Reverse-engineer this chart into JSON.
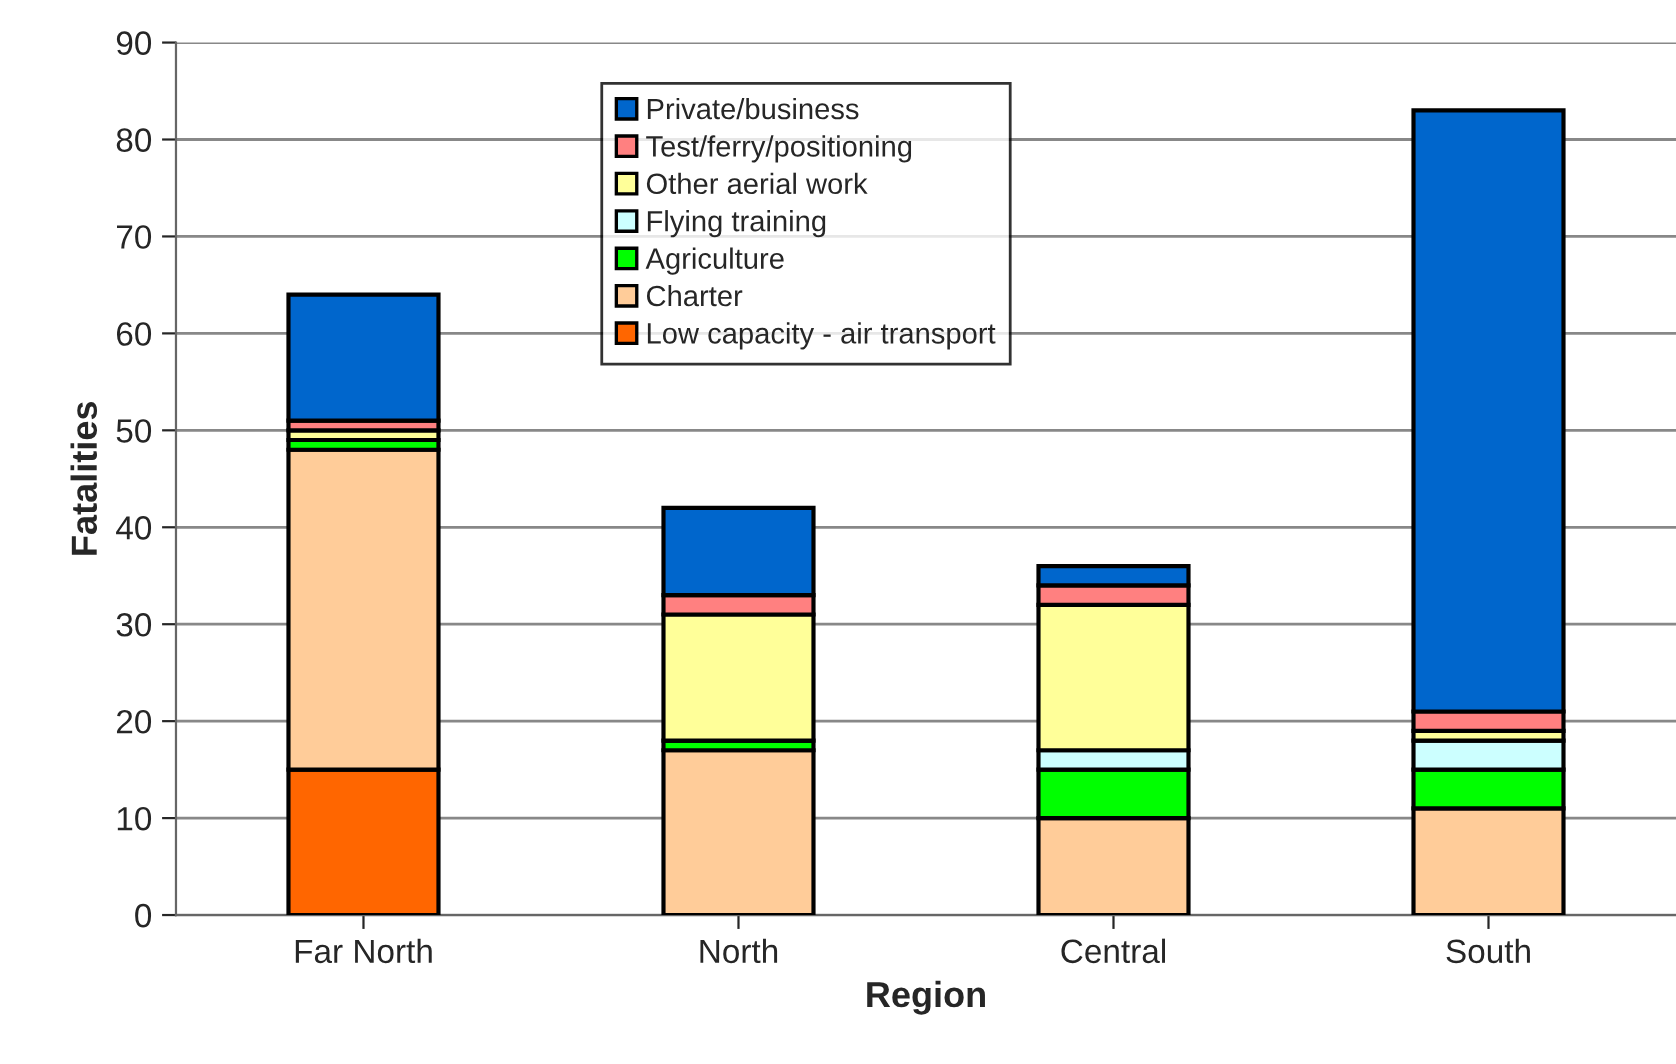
{
  "chart_data": {
    "type": "bar",
    "xlabel": "Region",
    "ylabel": "Fatalities",
    "categories": [
      "Far North",
      "North",
      "Central",
      "South"
    ],
    "stacked": true,
    "series": [
      {
        "name": "Low capacity - air transport",
        "color": "#ff6600",
        "values": [
          15,
          0,
          0,
          0
        ]
      },
      {
        "name": "Charter",
        "color": "#ffcc99",
        "values": [
          33,
          17,
          10,
          11
        ]
      },
      {
        "name": "Agriculture",
        "color": "#00ff00",
        "values": [
          1,
          1,
          5,
          4
        ]
      },
      {
        "name": "Flying training",
        "color": "#ccffff",
        "values": [
          0,
          0,
          2,
          3
        ]
      },
      {
        "name": "Other aerial work",
        "color": "#ffff99",
        "values": [
          1,
          13,
          15,
          1
        ]
      },
      {
        "name": "Test/ferry/positioning",
        "color": "#ff8080",
        "values": [
          1,
          2,
          2,
          2
        ]
      },
      {
        "name": "Private/business",
        "color": "#0066cc",
        "values": [
          13,
          9,
          2,
          62
        ]
      }
    ],
    "ylim": [
      0,
      90
    ],
    "yticks": [
      0,
      10,
      20,
      30,
      40,
      50,
      60,
      70,
      80,
      90
    ],
    "grid": "y",
    "legend": "top"
  }
}
